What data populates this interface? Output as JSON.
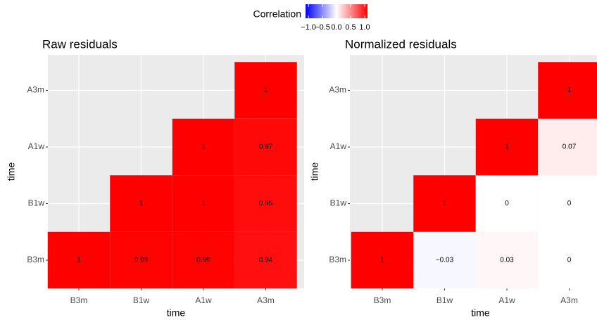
{
  "colorbar": {
    "title": "Correlation",
    "lim": [
      -1,
      1
    ],
    "ticks": [
      {
        "value": -1,
        "label": "−1.0"
      },
      {
        "value": -0.5,
        "label": "−0.5"
      },
      {
        "value": 0,
        "label": "0.0"
      },
      {
        "value": 0.5,
        "label": "0.5"
      },
      {
        "value": 1,
        "label": "1.0"
      }
    ],
    "colors": [
      "#0000ff",
      "#ffffff",
      "#ff0000"
    ]
  },
  "chart_data": [
    {
      "type": "heatmap",
      "title": "Raw residuals",
      "x_label": "time",
      "y_label": "time",
      "x_categories": [
        "B3m",
        "B1w",
        "A1w",
        "A3m"
      ],
      "y_categories": [
        "B3m",
        "B1w",
        "A1w",
        "A3m"
      ],
      "values": [
        [
          1,
          0.99,
          0.99,
          0.94
        ],
        [
          null,
          1,
          1,
          0.95
        ],
        [
          null,
          null,
          1,
          0.97
        ],
        [
          null,
          null,
          null,
          1
        ]
      ]
    },
    {
      "type": "heatmap",
      "title": "Normalized residuals",
      "x_label": "time",
      "y_label": "time",
      "x_categories": [
        "B3m",
        "B1w",
        "A1w",
        "A3m"
      ],
      "y_categories": [
        "B3m",
        "B1w",
        "A1w",
        "A3m"
      ],
      "values": [
        [
          1,
          -0.03,
          0.03,
          0
        ],
        [
          null,
          1,
          0,
          0
        ],
        [
          null,
          null,
          1,
          0.07
        ],
        [
          null,
          null,
          null,
          1
        ]
      ],
      "value_labels": [
        [
          "1",
          "−0.03",
          "0.03",
          "0"
        ],
        [
          null,
          "1",
          "0",
          "0"
        ],
        [
          null,
          null,
          "1",
          "0.07"
        ],
        [
          null,
          null,
          null,
          "1"
        ]
      ]
    }
  ]
}
